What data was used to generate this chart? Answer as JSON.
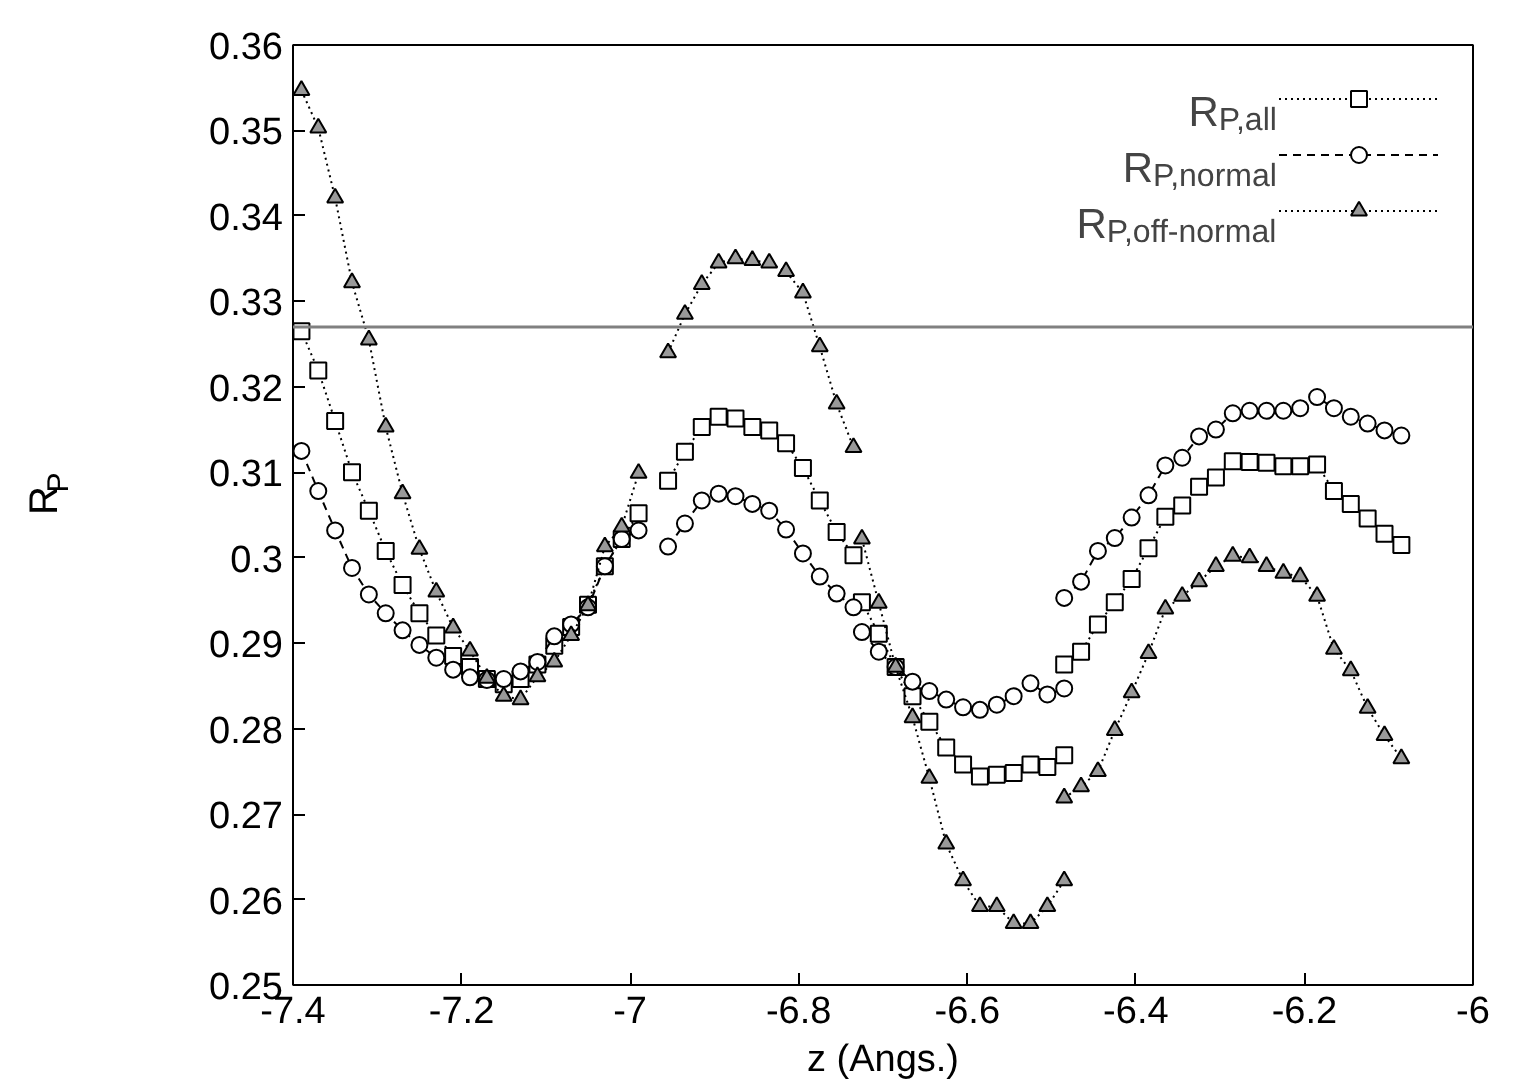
{
  "chart_data": {
    "type": "line",
    "xlabel": "z (Angs.)",
    "ylabel": "R$_{P}$",
    "x": [
      -7.39,
      -7.37,
      -7.35,
      -7.33,
      -7.31,
      -7.29,
      -7.27,
      -7.25,
      -7.23,
      -7.21,
      -7.19,
      -7.17,
      -7.15,
      -7.13,
      -7.11,
      -7.09,
      -7.07,
      -7.05,
      -7.03,
      -7.01,
      -6.99,
      -6.97,
      -6.955,
      -6.935,
      -6.915,
      -6.895,
      -6.875,
      -6.855,
      -6.835,
      -6.815,
      -6.795,
      -6.775,
      -6.755,
      -6.735,
      -6.73,
      -6.725,
      -6.705,
      -6.685,
      -6.665,
      -6.645,
      -6.625,
      -6.605,
      -6.585,
      -6.565,
      -6.545,
      -6.525,
      -6.505,
      -6.485,
      -6.485,
      -6.465,
      -6.445,
      -6.425,
      -6.405,
      -6.385,
      -6.365,
      -6.345,
      -6.325,
      -6.305,
      -6.285,
      -6.265,
      -6.245,
      -6.225,
      -6.205,
      -6.185,
      -6.165,
      -6.145,
      -6.125,
      -6.105,
      -6.085
    ],
    "series": [
      {
        "name": "R$_{P,all}$",
        "color": "#000000",
        "marker": "square",
        "line_style": "dotted",
        "values": [
          0.3265,
          0.3219,
          0.316,
          0.31,
          0.3055,
          0.3008,
          0.2968,
          0.2935,
          0.2909,
          0.2885,
          0.2872,
          0.2858,
          0.2852,
          0.2858,
          0.2875,
          0.2897,
          0.2919,
          0.2945,
          0.299,
          0.3022,
          0.3052,
          null,
          0.309,
          0.3124,
          0.3153,
          0.3165,
          0.3163,
          0.3153,
          0.3149,
          0.3134,
          0.3105,
          0.3067,
          0.303,
          0.3003,
          null,
          0.2948,
          0.2911,
          0.2872,
          0.2838,
          0.2808,
          0.2778,
          0.2758,
          0.2744,
          0.2746,
          0.2748,
          0.2758,
          0.2755,
          0.2769,
          0.2875,
          0.289,
          0.2922,
          0.2948,
          0.2975,
          0.3011,
          0.3048,
          0.3061,
          0.3083,
          0.3094,
          0.3113,
          0.3112,
          0.3111,
          0.3107,
          0.3107,
          0.3109,
          0.3078,
          0.3063,
          0.3046,
          0.3028,
          0.3015
        ]
      },
      {
        "name": "R$_{P,normal}$",
        "color": "#000000",
        "marker": "circle",
        "line_style": "dashed",
        "values": [
          0.3125,
          0.3078,
          0.3032,
          0.2988,
          0.2957,
          0.2935,
          0.2915,
          0.2898,
          0.2883,
          0.2869,
          0.286,
          0.2857,
          0.2858,
          0.2867,
          0.2878,
          0.2908,
          0.2922,
          0.2942,
          0.299,
          0.3022,
          0.3032,
          null,
          0.3013,
          0.304,
          0.3067,
          0.3075,
          0.3072,
          0.3063,
          0.3055,
          0.3033,
          0.3005,
          0.2978,
          0.2958,
          0.2942,
          null,
          0.2913,
          0.289,
          0.2872,
          0.2855,
          0.2844,
          0.2834,
          0.2825,
          0.2822,
          0.2828,
          0.2838,
          0.2853,
          0.284,
          0.2847,
          0.2953,
          0.2972,
          0.3008,
          0.3023,
          0.3047,
          0.3073,
          0.3108,
          0.3117,
          0.3142,
          0.315,
          0.3169,
          0.3172,
          0.3172,
          0.3172,
          0.3175,
          0.3188,
          0.3175,
          0.3165,
          0.3157,
          0.3149,
          0.3143
        ]
      },
      {
        "name": "R$_{P,off-normal}$",
        "color": "#000000",
        "marker": "triangle",
        "line_style": "dotted",
        "values": [
          0.3547,
          0.3503,
          0.3421,
          0.3322,
          0.3255,
          0.3153,
          0.3075,
          0.301,
          0.296,
          0.2918,
          0.2891,
          0.2859,
          0.2838,
          0.2834,
          0.2861,
          0.2878,
          0.2909,
          0.2944,
          0.3013,
          0.3036,
          0.3099,
          null,
          0.324,
          0.3285,
          0.332,
          0.3345,
          0.335,
          0.3348,
          0.3345,
          0.3335,
          0.331,
          0.3247,
          0.318,
          0.3129,
          null,
          0.3022,
          0.2947,
          0.2872,
          0.2813,
          0.2742,
          0.2665,
          0.2622,
          0.2592,
          0.2592,
          0.2572,
          0.2572,
          0.2592,
          0.2622,
          0.2719,
          0.2732,
          0.275,
          0.2798,
          0.2842,
          0.2888,
          0.294,
          0.2955,
          0.2972,
          0.299,
          0.3002,
          0.3,
          0.299,
          0.2982,
          0.2978,
          0.2955,
          0.2893,
          0.2868,
          0.2824,
          0.2792,
          0.2765
        ]
      }
    ],
    "ref_lines": [
      {
        "axis": "y",
        "value": 0.327,
        "color": "#808080"
      }
    ],
    "xlim": [
      -7.4,
      -6
    ],
    "xticks": [
      -7.4,
      -7.2,
      -7,
      -6.8,
      -6.6,
      -6.4,
      -6.2,
      -6
    ],
    "ylim": [
      0.25,
      0.36
    ],
    "yticks": [
      0.25,
      0.26,
      0.27,
      0.28,
      0.29,
      0.3,
      0.31,
      0.32,
      0.33,
      0.34,
      0.35,
      0.36
    ],
    "grid": false,
    "legend": "top right"
  }
}
